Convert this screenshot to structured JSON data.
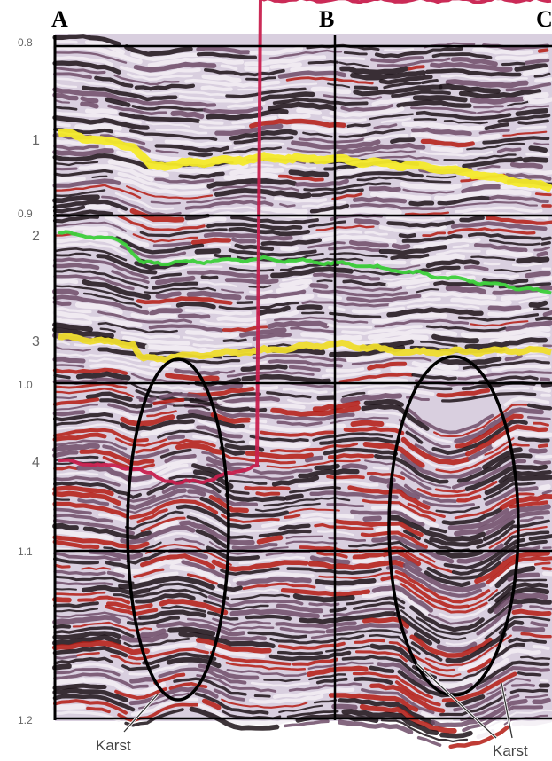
{
  "header": {
    "labels": [
      "A",
      "B",
      "C"
    ]
  },
  "time_axis": {
    "labels": [
      "0.8",
      "0.9",
      "1.0",
      "1.1",
      "1.2"
    ]
  },
  "horizons": {
    "labels": [
      "1",
      "2",
      "3",
      "4"
    ]
  },
  "annotations": {
    "labels": [
      "Karst",
      "Karst"
    ]
  }
}
